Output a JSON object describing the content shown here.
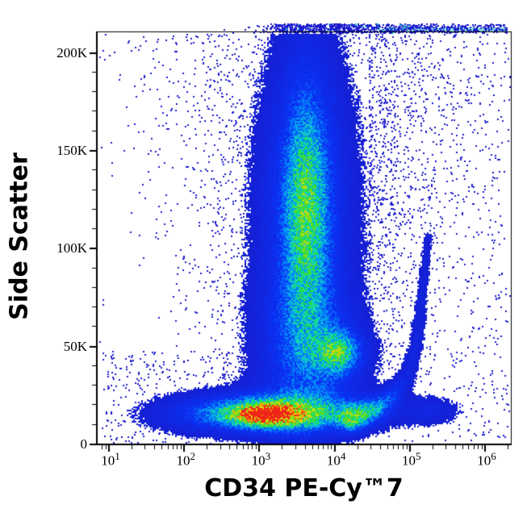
{
  "chart_data": {
    "type": "scatter",
    "subtype": "flow-cytometry-density-dot-plot",
    "title": "",
    "axes": {
      "x": {
        "title": "CD34 PE-Cy™7",
        "scale": "log10",
        "tick_exponents": [
          1,
          2,
          3,
          4,
          5,
          6
        ],
        "minor_ticks": "2-9 within each decade",
        "range_log10": [
          0.84,
          6.34
        ]
      },
      "y": {
        "title": "Side Scatter",
        "scale": "linear",
        "ticks": [
          {
            "value": 0,
            "label": "0"
          },
          {
            "value": 50000,
            "label": "50K"
          },
          {
            "value": 100000,
            "label": "100K"
          },
          {
            "value": 150000,
            "label": "150K"
          },
          {
            "value": 200000,
            "label": "200K"
          }
        ],
        "minor_tick_step_k": 10,
        "range_k": [
          0,
          210.6
        ]
      }
    },
    "populations": [
      {
        "name": "granulocyte-plume-broad",
        "x_log": 3.61,
        "y_k": 120.0,
        "sx_log": 0.515,
        "sy_k": 61.8,
        "amp": 0.22
      },
      {
        "name": "granulocyte-plume-inner",
        "x_log": 3.61,
        "y_k": 120.0,
        "sx_log": 0.28,
        "sy_k": 61.8,
        "amp": 0.2
      },
      {
        "name": "granulocyte-plume-core",
        "x_log": 3.61,
        "y_k": 120.7,
        "sx_log": 0.18,
        "sy_k": 35.0,
        "amp": 0.26
      },
      {
        "name": "plume-lower-bridge",
        "x_log": 3.58,
        "y_k": 49.9,
        "sx_log": 0.48,
        "sy_k": 24.7,
        "amp": 0.18
      },
      {
        "name": "monocyte-core",
        "x_log": 4.05,
        "y_k": 47.4,
        "sx_log": 0.17,
        "sy_k": 6.6,
        "amp": 0.32
      },
      {
        "name": "monocyte-halo",
        "x_log": 4.05,
        "y_k": 46.6,
        "sx_log": 0.32,
        "sy_k": 10.7,
        "amp": 0.16
      },
      {
        "name": "lymphocyte-core",
        "x_log": 3.07,
        "y_k": 15.7,
        "sx_log": 0.28,
        "sy_k": 3.7,
        "amp": 0.55
      },
      {
        "name": "lymphocyte-mid",
        "x_log": 3.15,
        "y_k": 16.1,
        "sx_log": 0.64,
        "sy_k": 5.4,
        "amp": 0.38
      },
      {
        "name": "lymphocyte-halo",
        "x_log": 3.26,
        "y_k": 16.9,
        "sx_log": 1.02,
        "sy_k": 8.2,
        "amp": 0.26
      },
      {
        "name": "cd34-positive-cluster",
        "x_log": 5.26,
        "y_k": 17.7,
        "sx_log": 0.3,
        "sy_k": 5.4,
        "amp": 0.125
      },
      {
        "name": "left-debris",
        "x_log": 2.18,
        "y_k": 14.8,
        "sx_log": 0.59,
        "sy_k": 7.4,
        "amp": 0.07
      }
    ],
    "arm": {
      "name": "cd34-rising-arm",
      "points": [
        {
          "x_log": 4.22,
          "y_k": 13.5,
          "amp": 0.45,
          "sigma_log": 0.118
        },
        {
          "x_log": 4.55,
          "y_k": 19.0,
          "amp": 0.33,
          "sigma_log": 0.107
        },
        {
          "x_log": 4.77,
          "y_k": 26.0,
          "amp": 0.22,
          "sigma_log": 0.097
        },
        {
          "x_log": 4.95,
          "y_k": 35.0,
          "amp": 0.17,
          "sigma_log": 0.086
        },
        {
          "x_log": 5.07,
          "y_k": 50.0,
          "amp": 0.14,
          "sigma_log": 0.075
        },
        {
          "x_log": 5.12,
          "y_k": 64.0,
          "amp": 0.13,
          "sigma_log": 0.075
        },
        {
          "x_log": 5.16,
          "y_k": 79.0,
          "amp": 0.12,
          "sigma_log": 0.064
        },
        {
          "x_log": 5.2,
          "y_k": 93.0,
          "amp": 0.11,
          "sigma_log": 0.064
        },
        {
          "x_log": 5.23,
          "y_k": 106.0,
          "amp": 0.1,
          "sigma_log": 0.064
        }
      ]
    },
    "sprays": [
      {
        "name": "plume-outlier-spray",
        "type": "plume",
        "n": 3400,
        "x_mu_log": 3.66,
        "sigma_log_bottom": 0.6,
        "sigma_log_top": 1.25,
        "y_k_min": 34,
        "y_k_max": 210
      },
      {
        "name": "upper-right-field",
        "type": "biased-left",
        "n": 620,
        "x_log_min": 4.45,
        "x_log_max": 6.33,
        "y_k_min": 88,
        "y_k_max": 210
      },
      {
        "name": "lower-right-field",
        "type": "uniform",
        "n": 320,
        "x_log_min": 4.6,
        "x_log_max": 6.32,
        "y_k_min": 2,
        "y_k_max": 88
      },
      {
        "name": "lower-left-field",
        "type": "uniform",
        "n": 380,
        "x_log_min": 0.9,
        "x_log_max": 2.95,
        "y_k_min": 1,
        "y_k_max": 48
      },
      {
        "name": "sparse-whole-field",
        "type": "uniform",
        "n": 70,
        "x_log_min": 0.85,
        "x_log_max": 6.3,
        "y_k_min": 1,
        "y_k_max": 209
      }
    ],
    "pileup_band": {
      "name": "offscale-top-pileup",
      "x_log_from": 3.13,
      "x_log_solid_from": 4.66,
      "x_log_to": 6.3,
      "speckle_n": 700,
      "extra_plume_n": 350,
      "cyan_fraction": 0.18
    },
    "colormap": [
      {
        "v": 0.0,
        "c": "#1919c8"
      },
      {
        "v": 0.3,
        "c": "#0a32f5"
      },
      {
        "v": 0.45,
        "c": "#0096fa"
      },
      {
        "v": 0.55,
        "c": "#14dcb4"
      },
      {
        "v": 0.63,
        "c": "#1edd46"
      },
      {
        "v": 0.72,
        "c": "#6edc1e"
      },
      {
        "v": 0.8,
        "c": "#c8e10a"
      },
      {
        "v": 0.87,
        "c": "#fac800"
      },
      {
        "v": 0.93,
        "c": "#fc8205"
      },
      {
        "v": 1.0,
        "c": "#ee2319"
      }
    ],
    "style": {
      "dot_color": "#1b1bcd",
      "band_color": "#8fe8da",
      "band_speckle_cyan": "#2ad0c8",
      "axis_color": "#000000",
      "background": "#ffffff",
      "density_threshold": 0.07
    }
  }
}
